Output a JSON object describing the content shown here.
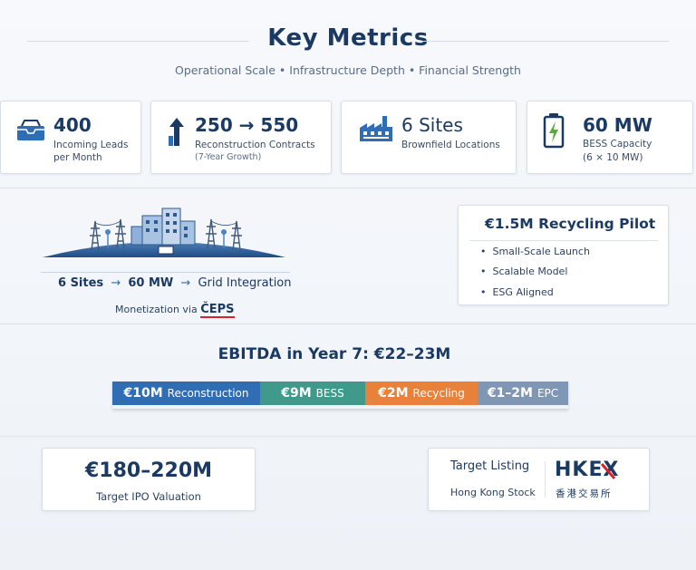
{
  "header": {
    "title": "Key Metrics",
    "subtitle": "Operational Scale • Infrastructure Depth • Financial Strength"
  },
  "metrics": [
    {
      "icon": "inbox-icon",
      "value": "400",
      "label_line1": "Incoming Leads",
      "label_line2": "per Month"
    },
    {
      "icon": "arrow-up-icon",
      "value": "250 → 550",
      "label_line1": "Reconstruction Contracts",
      "label_line2": "(7-Year Growth)"
    },
    {
      "icon": "factory-icon",
      "value": "6 Sites",
      "label_line1": "Brownfield Locations",
      "label_line2": ""
    },
    {
      "icon": "battery-icon",
      "value": "60 MW",
      "label_line1": "BESS Capacity",
      "label_line2": "(6 × 10 MW)"
    }
  ],
  "grid": {
    "flow_sites": "6 Sites",
    "arrow1": "→",
    "flow_mw": "60 MW",
    "arrow2": "→",
    "flow_grid": "Grid Integration",
    "monetization_prefix": "Monetization via",
    "monetization_brand": "ČEPS"
  },
  "pilot": {
    "title": "€1.5M Recycling Pilot",
    "bullets": [
      "Small-Scale Launch",
      "Scalable Model",
      "ESG Aligned"
    ]
  },
  "ebitda": {
    "title": "EBITDA in Year 7: €22–23M",
    "segments": [
      {
        "amount": "€10M",
        "label": "Reconstruction",
        "color": "#2f6db5"
      },
      {
        "amount": "€9M",
        "label": "BESS",
        "color": "#3f9a8c"
      },
      {
        "amount": "€2M",
        "label": "Recycling",
        "color": "#e8813a"
      },
      {
        "amount": "€1–2M",
        "label": "EPC",
        "color": "#7f96b4"
      }
    ]
  },
  "ipo": {
    "value": "€180–220M",
    "label": "Target IPO Valuation"
  },
  "listing": {
    "title": "Target Listing",
    "subtitle": "Hong Kong Stock",
    "brand": "HKEX",
    "brand_cn": "香港交易所"
  },
  "colors": {
    "navy": "#1b3a63",
    "accent_blue": "#2f6db5",
    "hkex_red": "#d8232a"
  }
}
